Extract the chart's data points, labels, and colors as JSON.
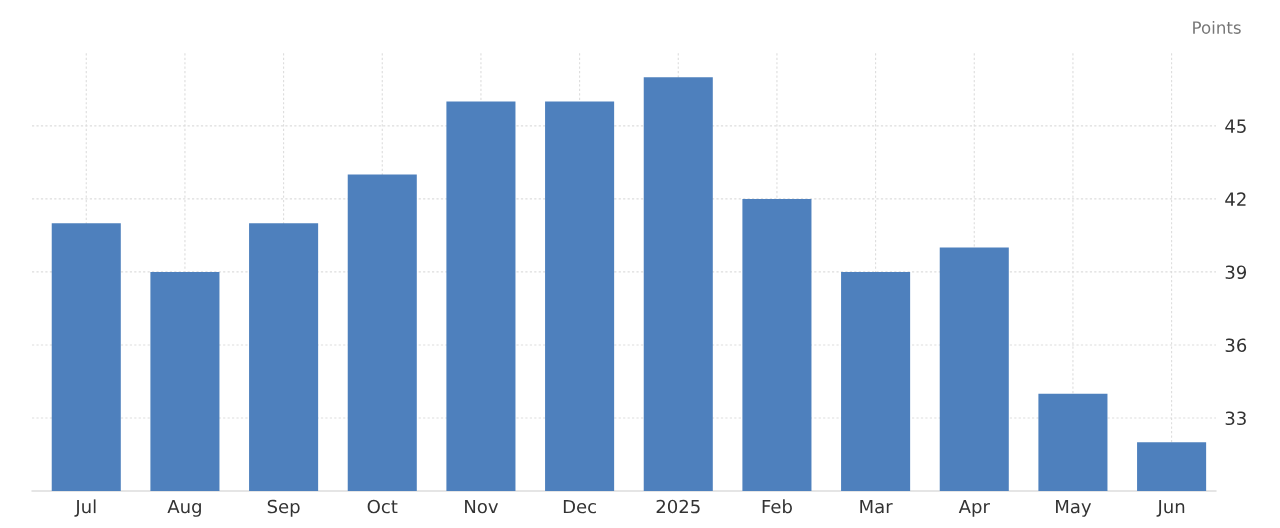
{
  "chart_data": {
    "type": "bar",
    "ylabel": "Points",
    "categories": [
      "Jul",
      "Aug",
      "Sep",
      "Oct",
      "Nov",
      "Dec",
      "2025",
      "Feb",
      "Mar",
      "Apr",
      "May",
      "Jun"
    ],
    "values": [
      41,
      39,
      41,
      43,
      46,
      46,
      47,
      42,
      39,
      40,
      34,
      32
    ],
    "color": "#4e80bd",
    "ylim": [
      30,
      48
    ],
    "yticks": [
      33,
      36,
      39,
      42,
      45
    ],
    "grid": true
  }
}
